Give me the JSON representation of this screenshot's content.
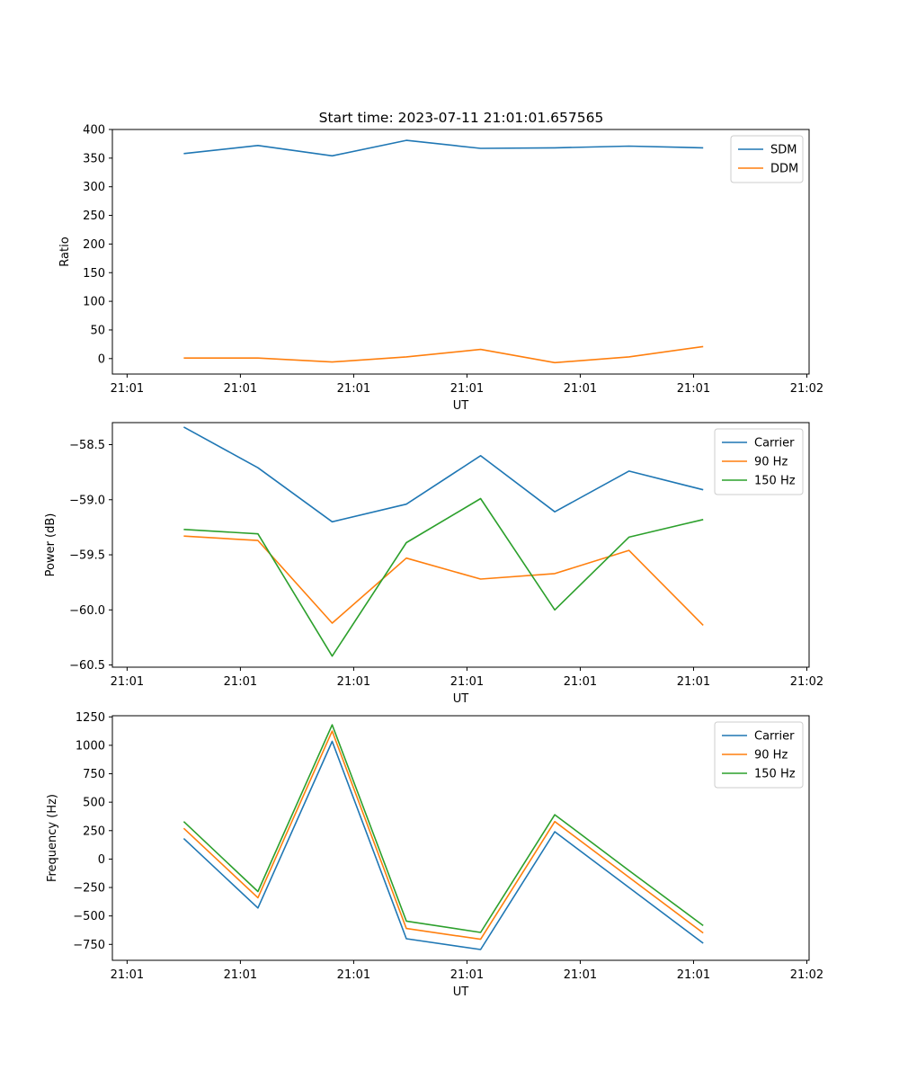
{
  "chart_data": [
    {
      "type": "line",
      "title": "Start time: 2023-07-11 21:01:01.657565",
      "xlabel": "UT",
      "ylabel": "Ratio",
      "x_tick_labels": [
        "21:01",
        "21:01",
        "21:01",
        "21:01",
        "21:01",
        "21:01",
        "21:02"
      ],
      "y_ticks": [
        0,
        50,
        100,
        150,
        200,
        250,
        300,
        350,
        400
      ],
      "ylim": [
        -27,
        400
      ],
      "legend": "top-right",
      "series": [
        {
          "name": "SDM",
          "color": "#1f77b4",
          "values": [
            358,
            372,
            354,
            381,
            367,
            368,
            371,
            368
          ]
        },
        {
          "name": "DDM",
          "color": "#ff7f0e",
          "values": [
            1,
            1,
            -6,
            3,
            16,
            -7,
            3,
            21
          ]
        }
      ]
    },
    {
      "type": "line",
      "xlabel": "UT",
      "ylabel": "Power (dB)",
      "x_tick_labels": [
        "21:01",
        "21:01",
        "21:01",
        "21:01",
        "21:01",
        "21:01",
        "21:02"
      ],
      "y_ticks": [
        -60.5,
        -60.0,
        -59.5,
        -59.0,
        -58.5
      ],
      "y_tick_labels": [
        "−60.5",
        "−60.0",
        "−59.5",
        "−59.0",
        "−58.5"
      ],
      "ylim": [
        -60.52,
        -58.3
      ],
      "legend": "top-right",
      "series": [
        {
          "name": "Carrier",
          "color": "#1f77b4",
          "values": [
            -58.34,
            -58.71,
            -59.2,
            -59.04,
            -58.6,
            -59.11,
            -58.74,
            -58.91
          ]
        },
        {
          "name": "90 Hz",
          "color": "#ff7f0e",
          "values": [
            -59.33,
            -59.37,
            -60.12,
            -59.53,
            -59.72,
            -59.67,
            -59.46,
            -60.14
          ]
        },
        {
          "name": "150 Hz",
          "color": "#2ca02c",
          "values": [
            -59.27,
            -59.31,
            -60.42,
            -59.39,
            -58.99,
            -60.0,
            -59.34,
            -59.18
          ]
        }
      ]
    },
    {
      "type": "line",
      "xlabel": "UT",
      "ylabel": "Frequency (Hz)",
      "x_tick_labels": [
        "21:01",
        "21:01",
        "21:01",
        "21:01",
        "21:01",
        "21:01",
        "21:02"
      ],
      "y_ticks": [
        -750,
        -500,
        -250,
        0,
        250,
        500,
        750,
        1000,
        1250
      ],
      "y_tick_labels": [
        "−750",
        "−500",
        "−250",
        "0",
        "250",
        "500",
        "750",
        "1000",
        "1250"
      ],
      "ylim": [
        -890,
        1260
      ],
      "legend": "top-right",
      "series": [
        {
          "name": "Carrier",
          "color": "#1f77b4",
          "values": [
            180,
            -430,
            1035,
            -700,
            -795,
            240,
            -250,
            -740
          ]
        },
        {
          "name": "90 Hz",
          "color": "#ff7f0e",
          "values": [
            270,
            -340,
            1125,
            -610,
            -705,
            330,
            -160,
            -650
          ]
        },
        {
          "name": "150 Hz",
          "color": "#2ca02c",
          "values": [
            330,
            -285,
            1180,
            -545,
            -645,
            390,
            -100,
            -585
          ]
        }
      ]
    }
  ],
  "x_data": [
    0.5,
    1.155,
    1.81,
    2.465,
    3.12,
    3.775,
    4.43,
    5.085
  ],
  "x_ticks": [
    0,
    1,
    2,
    3,
    4,
    5,
    6
  ],
  "xlim": [
    -0.13,
    6.02
  ]
}
